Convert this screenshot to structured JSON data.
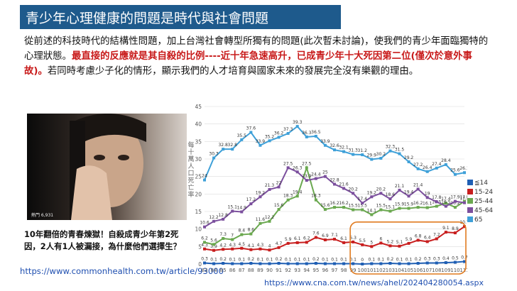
{
  "page": {
    "title": "青少年心理健康的問題是時代與社會問題",
    "para_plain_1": "從前述的科技時代的結構性問題，加上台灣社會轉型所獨有的問題(此次暫未討論)，使我們的青少年面臨獨特的心理狀態。",
    "para_red": "最直接的反應就是其自殺的比例----近十年急速高升，已成青少年十大死因第二位(僅次於意外事故)。",
    "para_plain_2": "若同時考慮少子化的情形，顯示我們的人才培育與國家未來的發展完全沒有樂觀的理由。",
    "photo_watermark": "熱門 6,931",
    "caption": "10年翻倍的青春煉獄！自殺成青少年第2死因，2人有1人被漏接，為什麼他們選擇生？",
    "link_1": "https://www.commonhealth.com.tw/article/93000",
    "link_2": "https://www.cna.com.tw/news/ahel/202404280054.aspx"
  },
  "chart_data": {
    "type": "line",
    "ylabel": "每十萬人口死亡率",
    "ylim": [
      0,
      45
    ],
    "x": [
      "83",
      "84",
      "85",
      "86",
      "87",
      "88",
      "89",
      "90",
      "91",
      "92",
      "93",
      "94",
      "95",
      "96",
      "97",
      "98",
      "99",
      "100",
      "101",
      "102",
      "103",
      "104",
      "105",
      "106",
      "107",
      "108",
      "109",
      "110",
      "111"
    ],
    "series": [
      {
        "name": "≦14",
        "color": "#1f5fb4",
        "values": [
          0.3,
          0.1,
          0.2,
          0.1,
          0.1,
          0.2,
          0.1,
          0.1,
          0.2,
          0.1,
          0.1,
          0.1,
          0.2,
          0.1,
          0.1,
          0.1,
          0.1,
          0.0,
          0.1,
          0.1,
          0.2,
          0.1,
          0.1,
          0.2,
          0.3,
          0.3,
          0.4,
          0.5,
          0.7
        ]
      },
      {
        "name": "15-24",
        "color": "#c81e1e",
        "values": [
          4.3,
          3.9,
          4.2,
          4.3,
          4.5,
          4.1,
          4.3,
          4.0,
          4.7,
          5.9,
          6.1,
          6.2,
          7.6,
          6.9,
          7.1,
          6.1,
          6.3,
          5.5,
          5.0,
          6.0,
          5.2,
          5.1,
          5.9,
          6.8,
          6.4,
          7.2,
          9.1,
          8.9,
          10.7
        ]
      },
      {
        "name": "25-44",
        "color": "#6aa84f",
        "values": [
          6.2,
          5.6,
          7.3,
          7.0,
          8.4,
          8.6,
          11.6,
          12.2,
          15.6,
          18.3,
          19.4,
          27.5,
          18.3,
          15.6,
          16.2,
          16.2,
          15.5,
          15.5,
          14.1,
          15.5,
          15.1,
          15.9,
          15.9,
          16.2,
          16.1,
          16.5,
          17.4,
          16.2,
          17.9
        ]
      },
      {
        "name": "45-64",
        "color": "#7b4f9d",
        "values": [
          10.6,
          12.2,
          12.8,
          15.1,
          14.9,
          17.2,
          19.2,
          21.3,
          22.0,
          27.5,
          26.3,
          23.9,
          24.4,
          25.0,
          22.8,
          21.6,
          20.2,
          17.4,
          19.2,
          20.2,
          18.6,
          21.1,
          19.4,
          21.4,
          19.0,
          17.8,
          16.5,
          17.9,
          17.5
        ]
      },
      {
        "name": "65",
        "color": "#3ea0d8",
        "values": [
          24.0,
          30.3,
          32.8,
          32.8,
          35.5,
          37.6,
          33.9,
          35.2,
          36.2,
          37.3,
          39.3,
          36.3,
          36.5,
          33.9,
          32.6,
          32.1,
          31.3,
          31.2,
          29.9,
          30.2,
          32.3,
          31.5,
          29.2,
          27.2,
          26.4,
          27.4,
          28.4,
          25.6,
          26.1
        ]
      }
    ]
  }
}
